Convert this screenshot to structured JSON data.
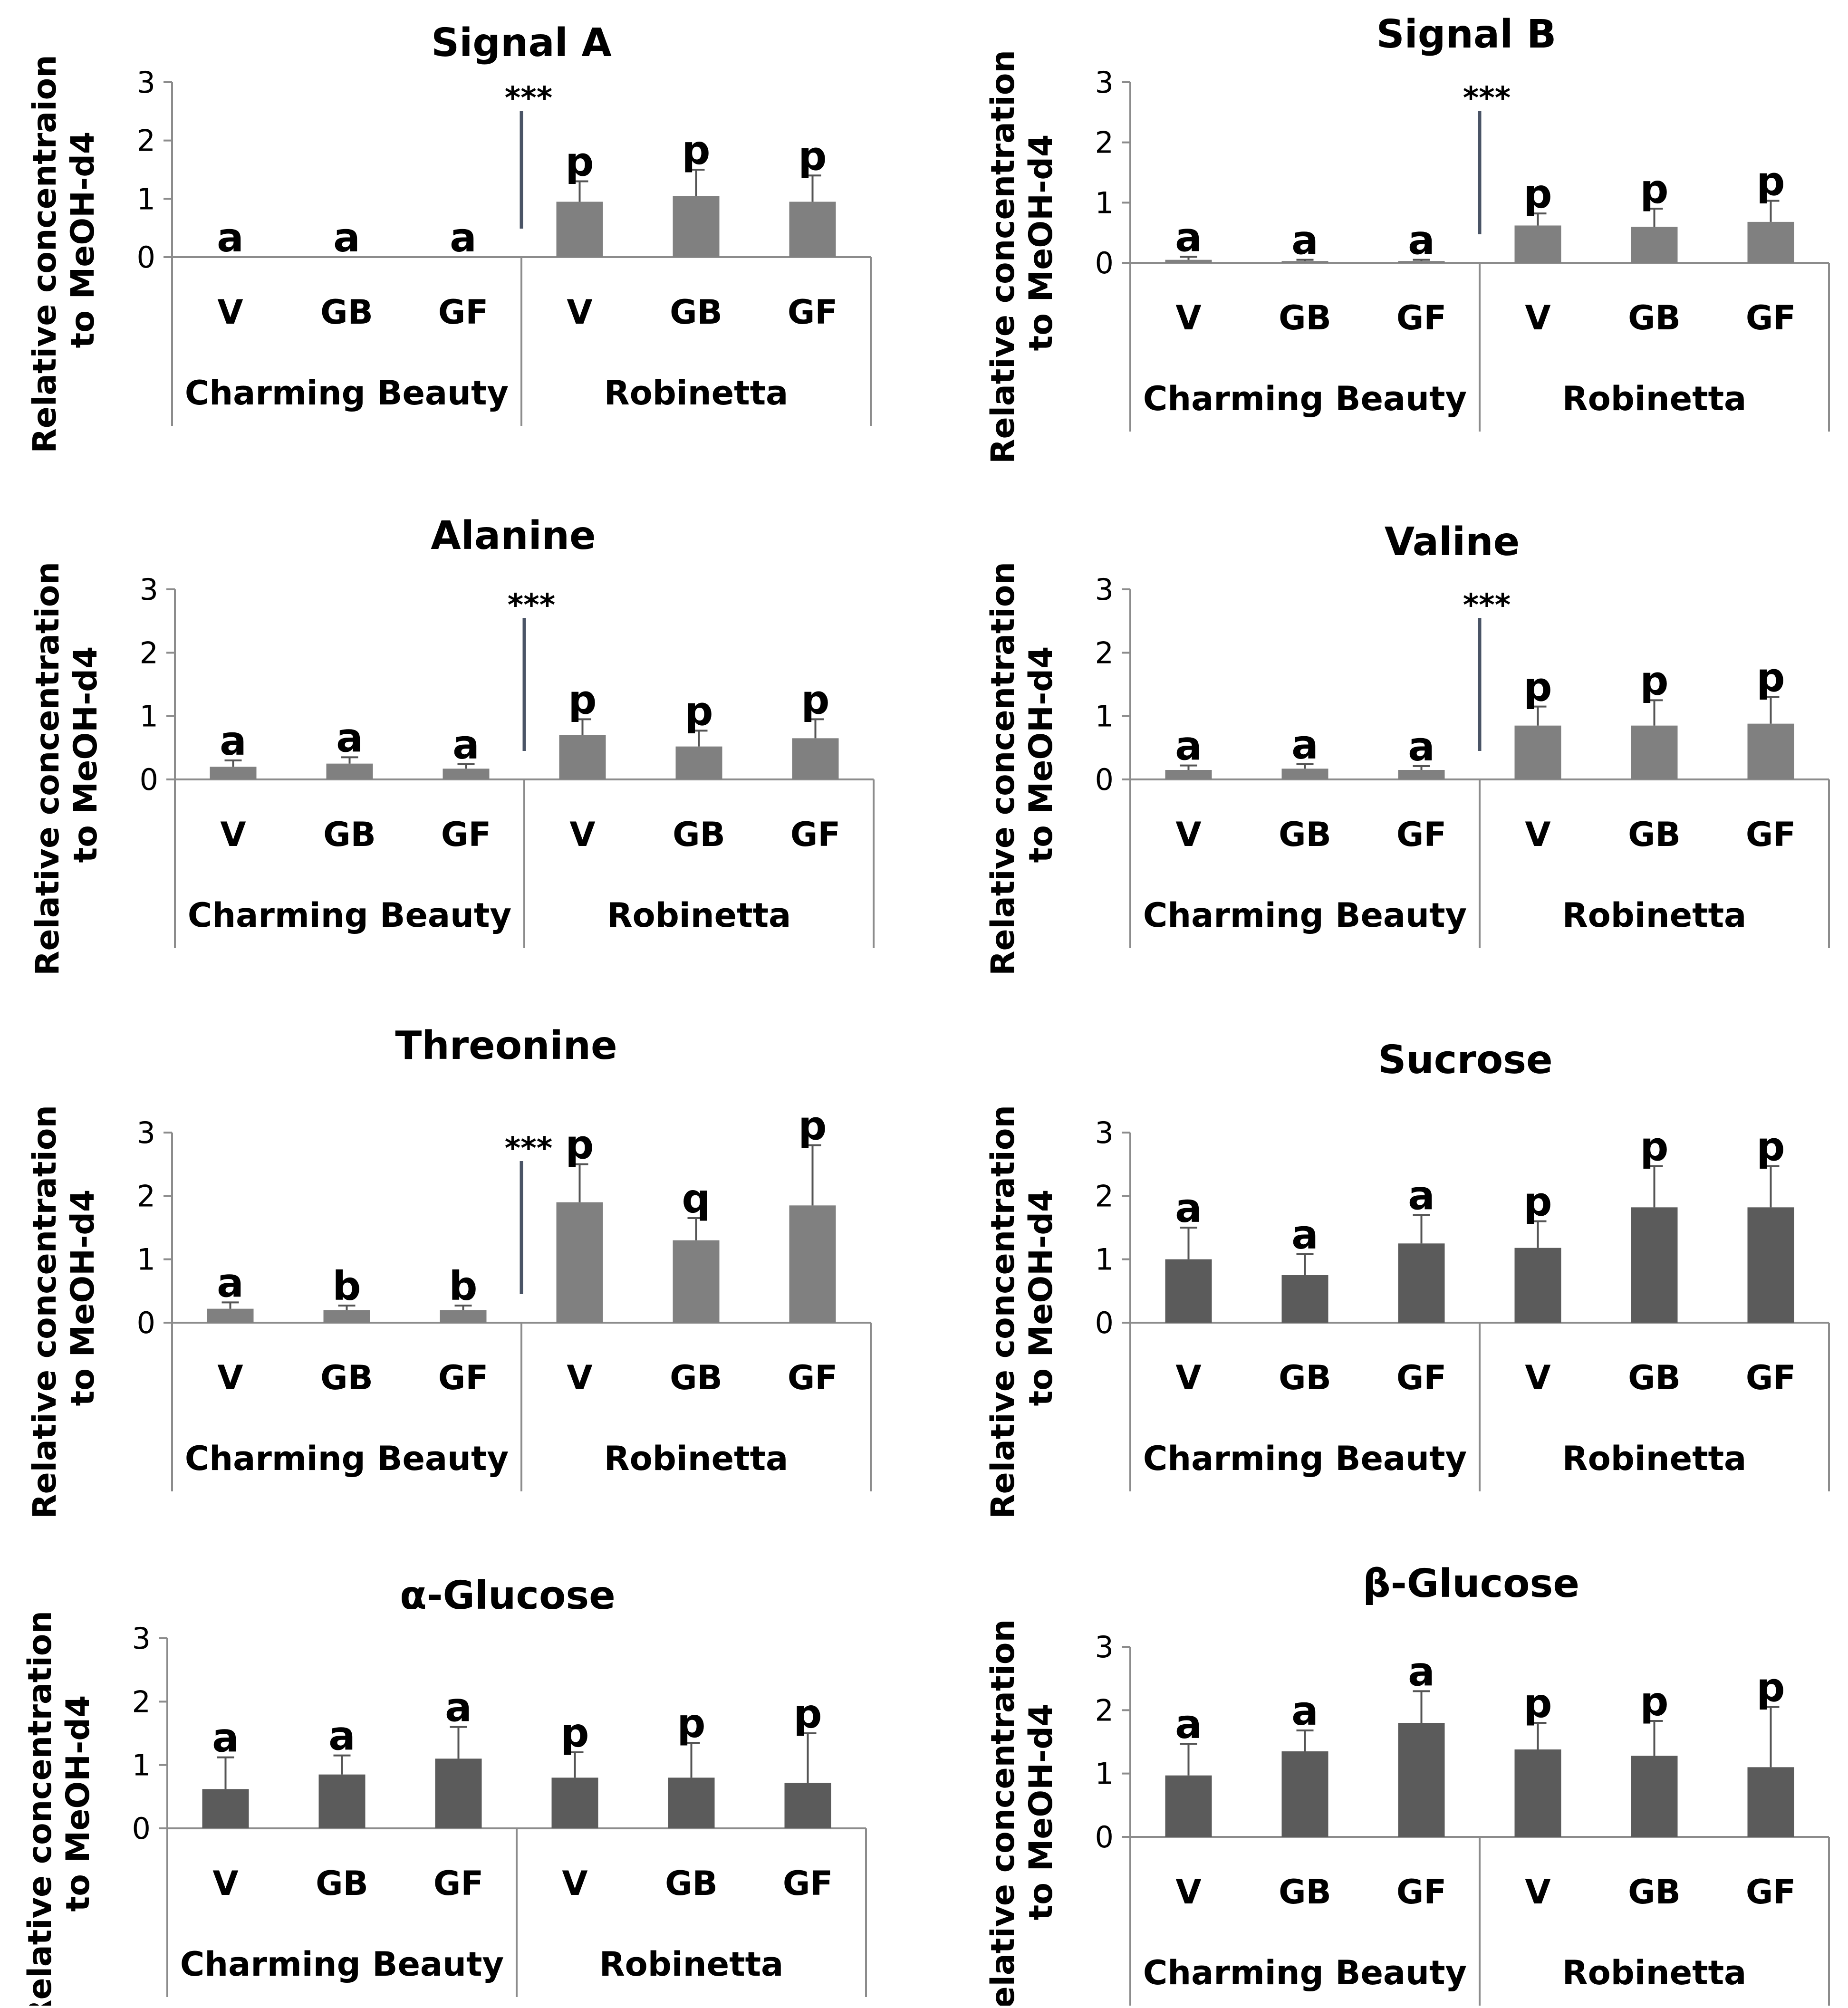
{
  "colors": {
    "bar_dark": "#5b5b5b",
    "bar_light": "#808080",
    "axis": "#8c8c8c",
    "error": "#555555",
    "sig_line": "#4a5466",
    "text": "#000000"
  },
  "chart_data": [
    {
      "type": "bar",
      "title": "Signal A",
      "ylabel": [
        "Relative concentraion",
        "to MeOH-d4"
      ],
      "ylim": [
        0,
        3
      ],
      "yticks": [
        "0",
        "1",
        "2",
        "3"
      ],
      "categories": [
        "V",
        "GB",
        "GF",
        "V",
        "GB",
        "GF"
      ],
      "groups": [
        "Charming Beauty",
        "Robinetta"
      ],
      "values": [
        0,
        0,
        0,
        0.95,
        1.05,
        0.95
      ],
      "errors": [
        0,
        0,
        0,
        0.35,
        0.45,
        0.45
      ],
      "letters": [
        "a",
        "a",
        "a",
        "p",
        "p",
        "p"
      ],
      "significance": "***",
      "bar_tone": "light"
    },
    {
      "type": "bar",
      "title": "Signal B",
      "ylabel": [
        "Relative concentration",
        "to MeOH-d4"
      ],
      "ylim": [
        0,
        3
      ],
      "yticks": [
        "0",
        "1",
        "2",
        "3"
      ],
      "categories": [
        "V",
        "GB",
        "GF",
        "V",
        "GB",
        "GF"
      ],
      "groups": [
        "Charming Beauty",
        "Robinetta"
      ],
      "values": [
        0.05,
        0.03,
        0.03,
        0.62,
        0.6,
        0.68
      ],
      "errors": [
        0.05,
        0.02,
        0.02,
        0.2,
        0.3,
        0.35
      ],
      "letters": [
        "a",
        "a",
        "a",
        "p",
        "p",
        "p"
      ],
      "significance": "***",
      "bar_tone": "light"
    },
    {
      "type": "bar",
      "title": "Alanine",
      "ylabel": [
        "Relative concentration",
        "to MeOH-d4"
      ],
      "ylim": [
        0,
        3
      ],
      "yticks": [
        "0",
        "1",
        "2",
        "3"
      ],
      "categories": [
        "V",
        "GB",
        "GF",
        "V",
        "GB",
        "GF"
      ],
      "groups": [
        "Charming Beauty",
        "Robinetta"
      ],
      "values": [
        0.2,
        0.25,
        0.17,
        0.7,
        0.52,
        0.65
      ],
      "errors": [
        0.1,
        0.1,
        0.07,
        0.25,
        0.25,
        0.3
      ],
      "letters": [
        "a",
        "a",
        "a",
        "p",
        "p",
        "p"
      ],
      "significance": "***",
      "bar_tone": "light"
    },
    {
      "type": "bar",
      "title": "Valine",
      "ylabel": [
        "Relative concentration",
        "to MeOH-d4"
      ],
      "ylim": [
        0,
        3
      ],
      "yticks": [
        "0",
        "1",
        "2",
        "3"
      ],
      "categories": [
        "V",
        "GB",
        "GF",
        "V",
        "GB",
        "GF"
      ],
      "groups": [
        "Charming Beauty",
        "Robinetta"
      ],
      "values": [
        0.15,
        0.17,
        0.15,
        0.85,
        0.85,
        0.88
      ],
      "errors": [
        0.07,
        0.07,
        0.06,
        0.3,
        0.4,
        0.42
      ],
      "letters": [
        "a",
        "a",
        "a",
        "p",
        "p",
        "p"
      ],
      "significance": "***",
      "bar_tone": "light"
    },
    {
      "type": "bar",
      "title": "Threonine",
      "ylabel": [
        "Relative concentration",
        "to MeOH-d4"
      ],
      "ylim": [
        0,
        3
      ],
      "yticks": [
        "0",
        "1",
        "2",
        "3"
      ],
      "categories": [
        "V",
        "GB",
        "GF",
        "V",
        "GB",
        "GF"
      ],
      "groups": [
        "Charming Beauty",
        "Robinetta"
      ],
      "values": [
        0.22,
        0.2,
        0.2,
        1.9,
        1.3,
        1.85
      ],
      "errors": [
        0.1,
        0.07,
        0.07,
        0.6,
        0.35,
        0.95
      ],
      "letters": [
        "a",
        "b",
        "b",
        "p",
        "q",
        "p"
      ],
      "significance": "***",
      "bar_tone": "light"
    },
    {
      "type": "bar",
      "title": "Sucrose",
      "ylabel": [
        "Relative concentration",
        "to MeOH-d4"
      ],
      "ylim": [
        0,
        3
      ],
      "yticks": [
        "0",
        "1",
        "2",
        "3"
      ],
      "categories": [
        "V",
        "GB",
        "GF",
        "V",
        "GB",
        "GF"
      ],
      "groups": [
        "Charming Beauty",
        "Robinetta"
      ],
      "values": [
        1.0,
        0.75,
        1.25,
        1.18,
        1.82,
        1.82
      ],
      "errors": [
        0.5,
        0.33,
        0.45,
        0.42,
        0.65,
        0.65
      ],
      "letters": [
        "a",
        "a",
        "a",
        "p",
        "p",
        "p"
      ],
      "significance": "",
      "bar_tone": "dark"
    },
    {
      "type": "bar",
      "title": "α-Glucose",
      "ylabel": [
        "Relative concentration",
        "to MeOH-d4"
      ],
      "ylim": [
        0,
        3
      ],
      "yticks": [
        "0",
        "1",
        "2",
        "3"
      ],
      "categories": [
        "V",
        "GB",
        "GF",
        "V",
        "GB",
        "GF"
      ],
      "groups": [
        "Charming Beauty",
        "Robinetta"
      ],
      "values": [
        0.62,
        0.85,
        1.1,
        0.8,
        0.8,
        0.72
      ],
      "errors": [
        0.5,
        0.3,
        0.5,
        0.4,
        0.55,
        0.78
      ],
      "letters": [
        "a",
        "a",
        "a",
        "p",
        "p",
        "p"
      ],
      "significance": "",
      "bar_tone": "dark"
    },
    {
      "type": "bar",
      "title": "β-Glucose",
      "ylabel": [
        "Relative concentration",
        "to MeOH-d4"
      ],
      "ylim": [
        0,
        3
      ],
      "yticks": [
        "0",
        "1",
        "2",
        "3"
      ],
      "categories": [
        "V",
        "GB",
        "GF",
        "V",
        "GB",
        "GF"
      ],
      "groups": [
        "Charming Beauty",
        "Robinetta"
      ],
      "values": [
        0.97,
        1.35,
        1.8,
        1.38,
        1.28,
        1.1
      ],
      "errors": [
        0.5,
        0.33,
        0.5,
        0.42,
        0.55,
        0.95
      ],
      "letters": [
        "a",
        "a",
        "a",
        "p",
        "p",
        "p"
      ],
      "significance": "",
      "bar_tone": "dark"
    }
  ]
}
